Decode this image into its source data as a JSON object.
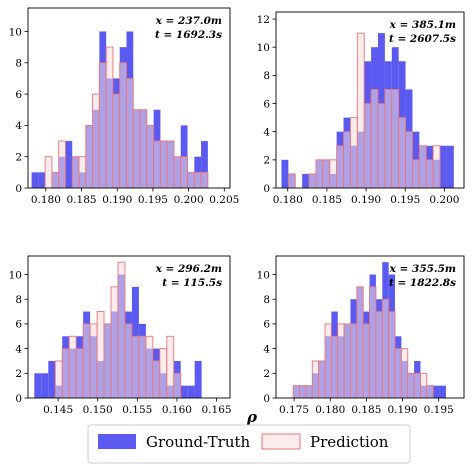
{
  "colors": {
    "ground_truth": "#5a5af0",
    "prediction_edge": "#e8757a",
    "prediction_fill": "#f6dcdf",
    "axis": "#000000"
  },
  "xlabel": "ρ",
  "legend": {
    "ground_truth": "Ground-Truth",
    "prediction": "Prediction"
  },
  "chart_data": [
    {
      "type": "bar",
      "annotation": {
        "x": "x = 237.0m",
        "t": "t = 1692.3s"
      },
      "xlim": [
        0.1775,
        0.2058
      ],
      "ylim": [
        0,
        11.5
      ],
      "xticks": [
        0.18,
        0.185,
        0.19,
        0.195,
        0.2,
        0.205
      ],
      "xtick_labels": [
        "0.180",
        "0.185",
        "0.190",
        "0.195",
        "0.200",
        "0.205"
      ],
      "yticks": [
        0,
        2,
        4,
        6,
        8,
        10
      ],
      "bin_start": 0.178,
      "bin_width": 0.00095,
      "ground_truth": [
        1,
        1,
        0,
        1,
        2,
        3,
        2,
        1,
        4,
        5,
        10,
        7,
        7,
        9,
        10,
        5,
        5,
        4,
        5,
        3,
        3,
        2,
        4,
        1,
        2,
        3
      ],
      "prediction": [
        0,
        0,
        2,
        1,
        3,
        0,
        2,
        2,
        4,
        6,
        8,
        9,
        6,
        8,
        7,
        5,
        5,
        4,
        3,
        3,
        3,
        2,
        2,
        1,
        1,
        1
      ]
    },
    {
      "type": "bar",
      "annotation": {
        "x": "x = 385.1m",
        "t": "t = 2607.5s"
      },
      "xlim": [
        0.1785,
        0.2025
      ],
      "ylim": [
        0,
        12.5
      ],
      "xticks": [
        0.18,
        0.185,
        0.19,
        0.195,
        0.2
      ],
      "xtick_labels": [
        "0.180",
        "0.185",
        "0.190",
        "0.195",
        "0.200"
      ],
      "yticks": [
        0,
        2,
        4,
        6,
        8,
        10,
        12
      ],
      "bin_start": 0.1792,
      "bin_width": 0.00088,
      "ground_truth": [
        2,
        1,
        0,
        1,
        1,
        2,
        2,
        1,
        4,
        5,
        3,
        4,
        9,
        10,
        11,
        9,
        10,
        9,
        7,
        4,
        3,
        3,
        2,
        3,
        3
      ],
      "prediction": [
        0,
        1,
        0,
        0,
        1,
        2,
        2,
        2,
        3,
        4,
        5,
        11,
        6,
        7,
        6,
        7,
        7,
        5,
        4,
        2,
        3,
        2,
        3,
        0,
        0
      ]
    },
    {
      "type": "bar",
      "annotation": {
        "x": "x = 296.2m",
        "t": "t = 115.5s"
      },
      "xlim": [
        0.1412,
        0.1667
      ],
      "ylim": [
        0,
        11.5
      ],
      "xticks": [
        0.145,
        0.15,
        0.155,
        0.16,
        0.165
      ],
      "xtick_labels": [
        "0.145",
        "0.150",
        "0.155",
        "0.160",
        "0.165"
      ],
      "yticks": [
        0,
        2,
        4,
        6,
        8,
        10
      ],
      "bin_start": 0.142,
      "bin_width": 0.00088,
      "ground_truth": [
        2,
        2,
        3,
        1,
        5,
        4,
        5,
        7,
        5,
        3,
        6,
        7,
        10,
        7,
        9,
        6,
        4,
        4,
        2,
        1,
        3,
        1,
        1,
        3
      ],
      "prediction": [
        0,
        0,
        0,
        3,
        4,
        5,
        4,
        6,
        6,
        7,
        6,
        9,
        11,
        6,
        5,
        5,
        5,
        3,
        4,
        5,
        2,
        0,
        0,
        0
      ]
    },
    {
      "type": "bar",
      "annotation": {
        "x": "x = 355.5m",
        "t": "t = 1822.8s"
      },
      "xlim": [
        0.1725,
        0.1985
      ],
      "ylim": [
        0,
        11.5
      ],
      "xticks": [
        0.175,
        0.18,
        0.185,
        0.19,
        0.195
      ],
      "xtick_labels": [
        "0.175",
        "0.180",
        "0.185",
        "0.190",
        "0.195"
      ],
      "yticks": [
        0,
        2,
        4,
        6,
        8,
        10
      ],
      "bin_start": 0.174,
      "bin_width": 0.00088,
      "ground_truth": [
        0,
        1,
        1,
        1,
        2,
        3,
        5,
        7,
        5,
        6,
        8,
        9,
        7,
        10,
        8,
        11,
        10,
        5,
        3,
        2,
        3,
        1,
        1,
        1,
        1
      ],
      "prediction": [
        0,
        1,
        1,
        1,
        3,
        3,
        6,
        5,
        6,
        6,
        6,
        9,
        6,
        9,
        7,
        8,
        7,
        4,
        4,
        2,
        2,
        2,
        1,
        0,
        0
      ]
    }
  ]
}
